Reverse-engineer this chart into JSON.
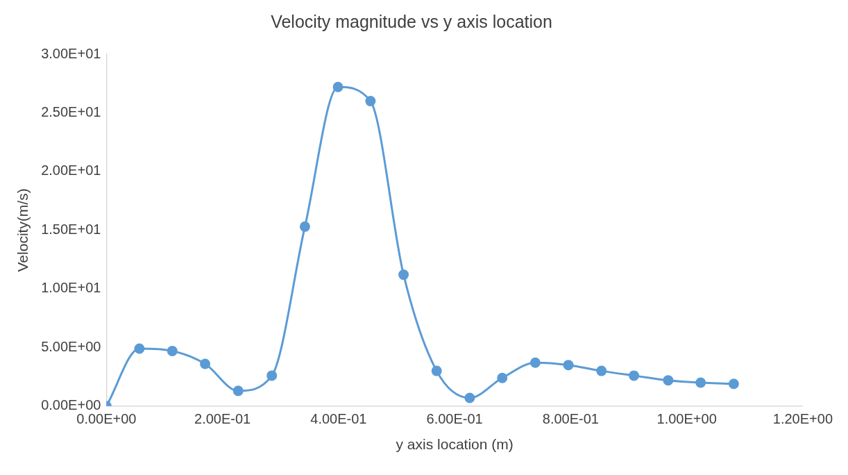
{
  "chart_data": {
    "type": "line",
    "title": "Velocity magnitude vs y axis location",
    "xlabel": "y axis location (m)",
    "ylabel": "Velocity(m/s)",
    "x": [
      0,
      0.0568,
      0.1135,
      0.17,
      0.227,
      0.285,
      0.342,
      0.399,
      0.455,
      0.512,
      0.569,
      0.626,
      0.682,
      0.739,
      0.796,
      0.853,
      0.909,
      0.968,
      1.024,
      1.081
    ],
    "series": [
      {
        "color": "#5b9bd5",
        "values": [
          0,
          4.9,
          4.7,
          3.6,
          1.3,
          2.6,
          15.3,
          27.2,
          26.0,
          11.2,
          3.0,
          0.7,
          2.4,
          3.7,
          3.5,
          3.0,
          2.6,
          2.2,
          2.0,
          1.9
        ]
      }
    ],
    "xlim": [
      0,
      1.2
    ],
    "xticks": [
      {
        "value": 0,
        "label": "0.00E+00"
      },
      {
        "value": 0.2,
        "label": "2.00E-01"
      },
      {
        "value": 0.4,
        "label": "4.00E-01"
      },
      {
        "value": 0.6,
        "label": "6.00E-01"
      },
      {
        "value": 0.8,
        "label": "8.00E-01"
      },
      {
        "value": 1.0,
        "label": "1.00E+00"
      },
      {
        "value": 1.2,
        "label": "1.20E+00"
      }
    ],
    "ylim": [
      0,
      30
    ],
    "yticks": [
      {
        "value": 0,
        "label": "0.00E+00"
      },
      {
        "value": 5,
        "label": "5.00E+00"
      },
      {
        "value": 10,
        "label": "1.00E+01"
      },
      {
        "value": 15,
        "label": "1.50E+01"
      },
      {
        "value": 20,
        "label": "2.00E+01"
      },
      {
        "value": 25,
        "label": "2.50E+01"
      },
      {
        "value": 30,
        "label": "3.00E+01"
      }
    ],
    "grid": false,
    "legend": false,
    "marker": "circle",
    "line_style": "solid"
  }
}
